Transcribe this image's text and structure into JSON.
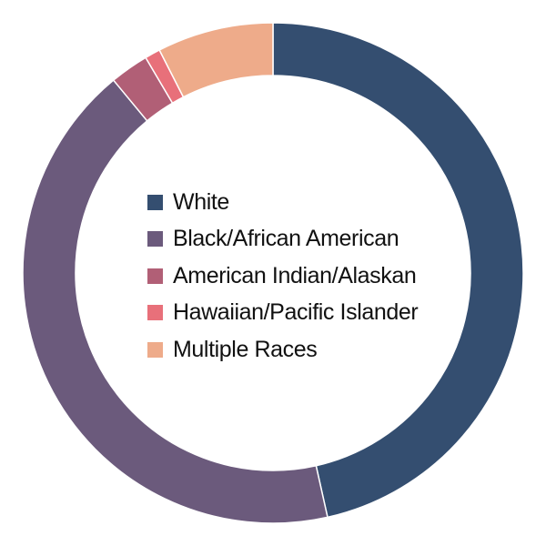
{
  "chart_data": {
    "type": "pie",
    "variant": "donut",
    "title": "",
    "categories": [
      "White",
      "Black/African American",
      "American Indian/Alaskan",
      "Hawaiian/Pacific Islander",
      "Multiple Races"
    ],
    "values": [
      46.5,
      42.5,
      2.5,
      1.0,
      7.5
    ],
    "colors": [
      "#344e70",
      "#6b5a7c",
      "#b15f76",
      "#e8707a",
      "#eeab8a"
    ],
    "legend": {
      "placement": "center",
      "items": [
        {
          "label": "White",
          "color": "#344e70"
        },
        {
          "label": "Black/African American",
          "color": "#6b5a7c"
        },
        {
          "label": "American Indian/Alaskan",
          "color": "#b15f76"
        },
        {
          "label": "Hawaiian/Pacific Islander",
          "color": "#e8707a"
        },
        {
          "label": "Multiple Races",
          "color": "#eeab8a"
        }
      ]
    }
  }
}
